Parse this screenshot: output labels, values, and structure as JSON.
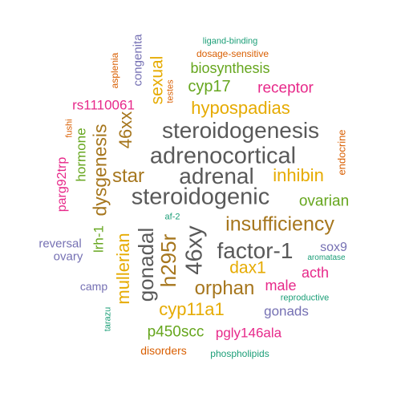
{
  "colors": {
    "gray": "#595959",
    "gold": "#E6AB02",
    "brown": "#A6761D",
    "green": "#66A61E",
    "magenta": "#E7298A",
    "purple": "#7570B3",
    "orange": "#D95F02",
    "teal": "#1B9E77"
  },
  "words": [
    {
      "id": "steroidogenesis",
      "text": "steroidogenesis"
    },
    {
      "id": "adrenocortical",
      "text": "adrenocortical"
    },
    {
      "id": "adrenal",
      "text": "adrenal"
    },
    {
      "id": "steroidogenic",
      "text": "steroidogenic"
    },
    {
      "id": "factor-1",
      "text": "factor-1"
    },
    {
      "id": "insufficiency",
      "text": "insufficiency"
    },
    {
      "id": "46xy",
      "text": "46xy"
    },
    {
      "id": "hypospadias",
      "text": "hypospadias"
    },
    {
      "id": "gonadal",
      "text": "gonadal"
    },
    {
      "id": "h295r",
      "text": "h295r"
    },
    {
      "id": "orphan",
      "text": "orphan"
    },
    {
      "id": "dysgenesis",
      "text": "dysgenesis"
    },
    {
      "id": "46xx",
      "text": "46xx"
    },
    {
      "id": "star",
      "text": "star"
    },
    {
      "id": "inhibin",
      "text": "inhibin"
    },
    {
      "id": "cyp11a1",
      "text": "cyp11a1"
    },
    {
      "id": "dax1",
      "text": "dax1"
    },
    {
      "id": "mullerian",
      "text": "mullerian"
    },
    {
      "id": "cyp17",
      "text": "cyp17"
    },
    {
      "id": "biosynthesis",
      "text": "biosynthesis"
    },
    {
      "id": "sexual",
      "text": "sexual"
    },
    {
      "id": "receptor",
      "text": "receptor"
    },
    {
      "id": "ovarian",
      "text": "ovarian"
    },
    {
      "id": "p450scc",
      "text": "p450scc"
    },
    {
      "id": "pgly146ala",
      "text": "pgly146ala"
    },
    {
      "id": "male",
      "text": "male"
    },
    {
      "id": "acth",
      "text": "acth"
    },
    {
      "id": "rs1110061",
      "text": "rs1110061"
    },
    {
      "id": "congenita",
      "text": "congenita"
    },
    {
      "id": "hormone",
      "text": "hormone"
    },
    {
      "id": "parg92trp",
      "text": "parg92trp"
    },
    {
      "id": "lrh-1",
      "text": "lrh-1"
    },
    {
      "id": "gonads",
      "text": "gonads"
    },
    {
      "id": "sox9",
      "text": "sox9"
    },
    {
      "id": "disorders",
      "text": "disorders"
    },
    {
      "id": "reversal",
      "text": "reversal"
    },
    {
      "id": "ovary",
      "text": "ovary"
    },
    {
      "id": "camp",
      "text": "camp"
    },
    {
      "id": "endocrine",
      "text": "endocrine"
    },
    {
      "id": "asplenia",
      "text": "asplenia"
    },
    {
      "id": "dosage-sensitive",
      "text": "dosage-sensitive"
    },
    {
      "id": "ligand-binding",
      "text": "ligand-binding"
    },
    {
      "id": "testes",
      "text": "testes"
    },
    {
      "id": "fushi",
      "text": "fushi"
    },
    {
      "id": "af-2",
      "text": "af-2"
    },
    {
      "id": "aromatase",
      "text": "aromatase"
    },
    {
      "id": "reproductive",
      "text": "reproductive"
    },
    {
      "id": "tarazu",
      "text": "tarazu"
    },
    {
      "id": "phospholipids",
      "text": "phospholipids"
    }
  ]
}
